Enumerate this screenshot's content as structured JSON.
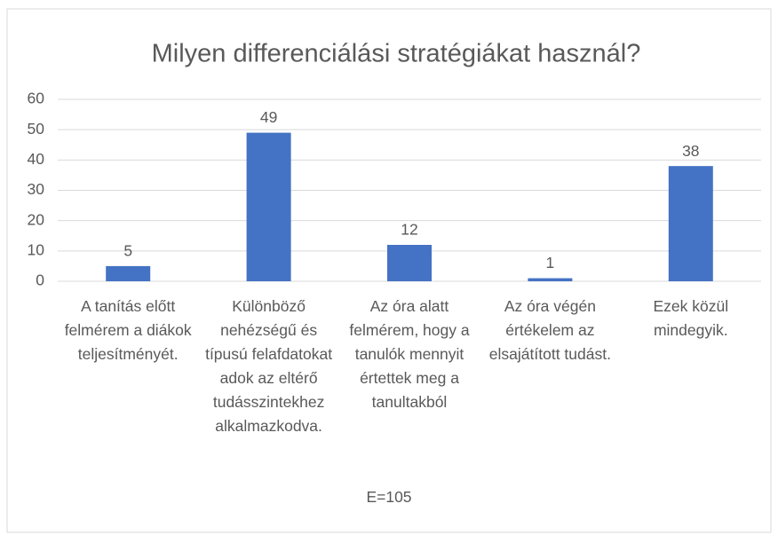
{
  "chart_data": {
    "type": "bar",
    "title": "Milyen differenciálási stratégiákat használ?",
    "categories": [
      "A tanítás előtt felmérem a diákok teljesítményét.",
      "Különböző nehézségű és típusú felafdatokat adok az eltérő tudásszintekhez alkalmazkodva.",
      "Az óra alatt felmérem, hogy a tanulók mennyit értettek meg a tanultakból",
      "Az óra végén értékelem az elsajátított tudást.",
      "Ezek közül mindegyik."
    ],
    "values": [
      5,
      49,
      12,
      1,
      38
    ],
    "color": "#4472c4",
    "ylim": [
      0,
      60
    ],
    "yticks": [
      0,
      10,
      20,
      30,
      40,
      50,
      60
    ],
    "grid": true,
    "note": "E=105"
  }
}
